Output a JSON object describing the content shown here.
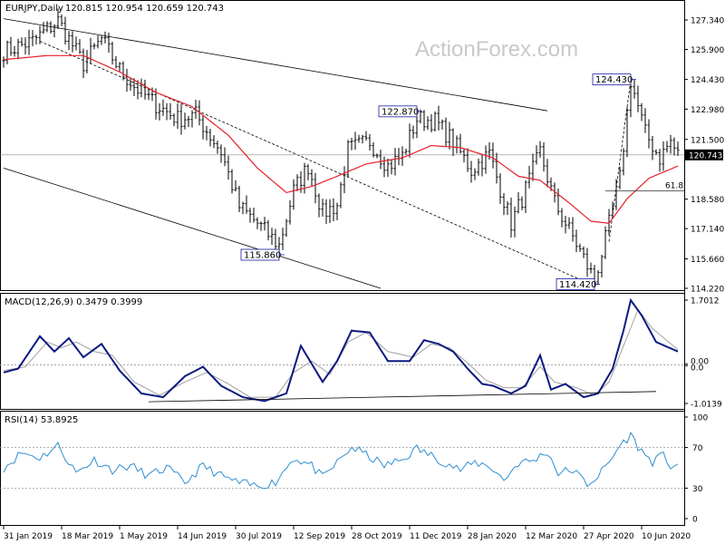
{
  "header": {
    "symbol": "EURJPY,Daily",
    "ohlc": "120.815 120.954 120.659 120.743"
  },
  "watermark": "ActionForex.com",
  "colors": {
    "bars": "#000000",
    "ma": "#e8202a",
    "macd": "#0c1a80",
    "signal": "#a0a0a0",
    "rsi": "#2f8fcf",
    "trend": "#000000",
    "grid_dots": "#999999",
    "last_price_line": "#888888"
  },
  "chart_data": [
    {
      "type": "candlestick",
      "title": "EURJPY,Daily",
      "ylim": [
        114.22,
        127.34
      ],
      "y_ticks": [
        "127.340",
        "125.900",
        "124.430",
        "122.980",
        "121.500",
        "120.743",
        "118.580",
        "117.140",
        "115.660",
        "114.220"
      ],
      "last_price": 120.743,
      "x_labels": [
        "31 Jan 2019",
        "18 Mar 2019",
        "1 May 2019",
        "14 Jun 2019",
        "30 Jul 2019",
        "12 Sep 2019",
        "28 Oct 2019",
        "11 Dec 2019",
        "28 Jan 2020",
        "12 Mar 2020",
        "27 Apr 2020",
        "10 Jun 2020"
      ],
      "annotations": [
        {
          "label": "115.860",
          "value": 115.86,
          "at_index": 76
        },
        {
          "label": "122.870",
          "value": 122.87,
          "at_index": 114
        },
        {
          "label": "114.420",
          "value": 114.42,
          "at_index": 163
        },
        {
          "label": "124.430",
          "value": 124.43,
          "at_index": 173
        }
      ],
      "fib_label": "61.8",
      "fib_level": 118.98,
      "close_keyframes": [
        [
          0,
          125.8
        ],
        [
          8,
          126.3
        ],
        [
          15,
          127.3
        ],
        [
          22,
          125.2
        ],
        [
          27,
          126.4
        ],
        [
          32,
          124.9
        ],
        [
          36,
          124.1
        ],
        [
          42,
          123.2
        ],
        [
          48,
          122.5
        ],
        [
          53,
          122.7
        ],
        [
          60,
          120.9
        ],
        [
          65,
          118.2
        ],
        [
          70,
          117.4
        ],
        [
          76,
          116.3
        ],
        [
          80,
          119.0
        ],
        [
          84,
          120.2
        ],
        [
          88,
          117.9
        ],
        [
          92,
          118.3
        ],
        [
          95,
          121.0
        ],
        [
          101,
          121.4
        ],
        [
          106,
          120.2
        ],
        [
          110,
          120.7
        ],
        [
          114,
          122.5
        ],
        [
          119,
          122.4
        ],
        [
          124,
          121.4
        ],
        [
          129,
          120.0
        ],
        [
          134,
          120.8
        ],
        [
          140,
          117.4
        ],
        [
          143,
          118.6
        ],
        [
          148,
          120.9
        ],
        [
          152,
          118.4
        ],
        [
          158,
          116.4
        ],
        [
          163,
          114.6
        ],
        [
          166,
          116.6
        ],
        [
          170,
          119.6
        ],
        [
          173,
          124.4
        ],
        [
          177,
          121.8
        ],
        [
          181,
          120.6
        ],
        [
          184,
          121.4
        ],
        [
          186,
          120.743
        ]
      ],
      "ma_keyframes": [
        [
          0,
          125.4
        ],
        [
          12,
          125.6
        ],
        [
          22,
          125.6
        ],
        [
          32,
          124.8
        ],
        [
          42,
          123.8
        ],
        [
          52,
          123.1
        ],
        [
          62,
          121.7
        ],
        [
          70,
          120.1
        ],
        [
          78,
          118.9
        ],
        [
          85,
          119.2
        ],
        [
          92,
          119.7
        ],
        [
          100,
          120.3
        ],
        [
          110,
          120.6
        ],
        [
          118,
          121.2
        ],
        [
          126,
          121.1
        ],
        [
          135,
          120.6
        ],
        [
          142,
          119.7
        ],
        [
          148,
          119.5
        ],
        [
          156,
          118.4
        ],
        [
          162,
          117.5
        ],
        [
          167,
          117.4
        ],
        [
          172,
          118.6
        ],
        [
          178,
          119.6
        ],
        [
          186,
          120.2
        ]
      ],
      "channel_upper": [
        [
          0,
          127.4
        ],
        [
          150,
          122.9
        ]
      ],
      "channel_lower": [
        [
          0,
          120.1
        ],
        [
          104,
          114.22
        ]
      ],
      "dashed_trend": [
        [
          10,
          126.3
        ],
        [
          162,
          114.42
        ]
      ],
      "fan_line": [
        [
          167,
          116.5
        ],
        [
          173,
          124.4
        ]
      ]
    },
    {
      "type": "line",
      "title": "MACD(12,26,9) 0.3479 0.3999",
      "ylim": [
        -1.0139,
        1.7012
      ],
      "y_ticks": [
        "1.7012",
        "0.00",
        "0.0",
        "-1.0139"
      ],
      "series": [
        {
          "name": "MACD",
          "keyframes": [
            [
              0,
              -0.2
            ],
            [
              4,
              -0.1
            ],
            [
              10,
              0.75
            ],
            [
              14,
              0.35
            ],
            [
              18,
              0.7
            ],
            [
              22,
              0.2
            ],
            [
              27,
              0.55
            ],
            [
              32,
              -0.15
            ],
            [
              38,
              -0.75
            ],
            [
              44,
              -0.85
            ],
            [
              50,
              -0.3
            ],
            [
              55,
              -0.05
            ],
            [
              60,
              -0.55
            ],
            [
              66,
              -0.85
            ],
            [
              72,
              -0.95
            ],
            [
              78,
              -0.75
            ],
            [
              82,
              0.5
            ],
            [
              88,
              -0.45
            ],
            [
              92,
              0.1
            ],
            [
              96,
              0.9
            ],
            [
              101,
              0.85
            ],
            [
              106,
              0.1
            ],
            [
              112,
              0.1
            ],
            [
              116,
              0.65
            ],
            [
              120,
              0.55
            ],
            [
              124,
              0.35
            ],
            [
              128,
              -0.1
            ],
            [
              132,
              -0.5
            ],
            [
              135,
              -0.55
            ],
            [
              140,
              -0.75
            ],
            [
              144,
              -0.55
            ],
            [
              148,
              0.25
            ],
            [
              151,
              -0.65
            ],
            [
              155,
              -0.5
            ],
            [
              160,
              -0.85
            ],
            [
              164,
              -0.75
            ],
            [
              168,
              -0.1
            ],
            [
              171,
              0.9
            ],
            [
              173,
              1.7
            ],
            [
              176,
              1.3
            ],
            [
              180,
              0.6
            ],
            [
              186,
              0.35
            ]
          ]
        },
        {
          "name": "Signal",
          "keyframes": [
            [
              0,
              -0.15
            ],
            [
              6,
              -0.05
            ],
            [
              12,
              0.6
            ],
            [
              16,
              0.45
            ],
            [
              20,
              0.6
            ],
            [
              25,
              0.35
            ],
            [
              30,
              0.25
            ],
            [
              36,
              -0.45
            ],
            [
              43,
              -0.8
            ],
            [
              50,
              -0.45
            ],
            [
              56,
              -0.2
            ],
            [
              62,
              -0.5
            ],
            [
              68,
              -0.85
            ],
            [
              75,
              -0.85
            ],
            [
              80,
              -0.2
            ],
            [
              85,
              0.1
            ],
            [
              90,
              -0.25
            ],
            [
              95,
              0.6
            ],
            [
              100,
              0.85
            ],
            [
              106,
              0.35
            ],
            [
              113,
              0.2
            ],
            [
              118,
              0.55
            ],
            [
              123,
              0.45
            ],
            [
              128,
              0.05
            ],
            [
              133,
              -0.4
            ],
            [
              138,
              -0.6
            ],
            [
              143,
              -0.6
            ],
            [
              148,
              -0.05
            ],
            [
              152,
              -0.45
            ],
            [
              158,
              -0.6
            ],
            [
              163,
              -0.8
            ],
            [
              167,
              -0.45
            ],
            [
              171,
              0.5
            ],
            [
              175,
              1.45
            ],
            [
              179,
              0.95
            ],
            [
              186,
              0.4
            ]
          ]
        }
      ],
      "trendline": [
        [
          40,
          -0.97
        ],
        [
          180,
          -0.7
        ]
      ]
    },
    {
      "type": "line",
      "title": "RSI(14) 53.8925",
      "ylim": [
        0,
        100
      ],
      "y_ticks": [
        "100",
        "70",
        "30",
        "0"
      ],
      "series": [
        {
          "name": "RSI",
          "keyframes": [
            [
              0,
              50
            ],
            [
              5,
              65
            ],
            [
              10,
              60
            ],
            [
              15,
              72
            ],
            [
              20,
              45
            ],
            [
              25,
              58
            ],
            [
              30,
              48
            ],
            [
              35,
              52
            ],
            [
              40,
              42
            ],
            [
              45,
              50
            ],
            [
              50,
              35
            ],
            [
              55,
              52
            ],
            [
              60,
              42
            ],
            [
              65,
              35
            ],
            [
              70,
              32
            ],
            [
              75,
              36
            ],
            [
              80,
              60
            ],
            [
              85,
              52
            ],
            [
              88,
              40
            ],
            [
              92,
              55
            ],
            [
              96,
              70
            ],
            [
              100,
              63
            ],
            [
              105,
              52
            ],
            [
              110,
              58
            ],
            [
              114,
              69
            ],
            [
              118,
              62
            ],
            [
              122,
              55
            ],
            [
              126,
              48
            ],
            [
              130,
              55
            ],
            [
              134,
              52
            ],
            [
              138,
              38
            ],
            [
              142,
              55
            ],
            [
              146,
              57
            ],
            [
              150,
              66
            ],
            [
              153,
              45
            ],
            [
              157,
              48
            ],
            [
              161,
              34
            ],
            [
              164,
              42
            ],
            [
              167,
              55
            ],
            [
              170,
              72
            ],
            [
              173,
              82
            ],
            [
              176,
              66
            ],
            [
              179,
              56
            ],
            [
              182,
              62
            ],
            [
              184,
              52
            ],
            [
              186,
              54
            ]
          ]
        }
      ]
    }
  ]
}
